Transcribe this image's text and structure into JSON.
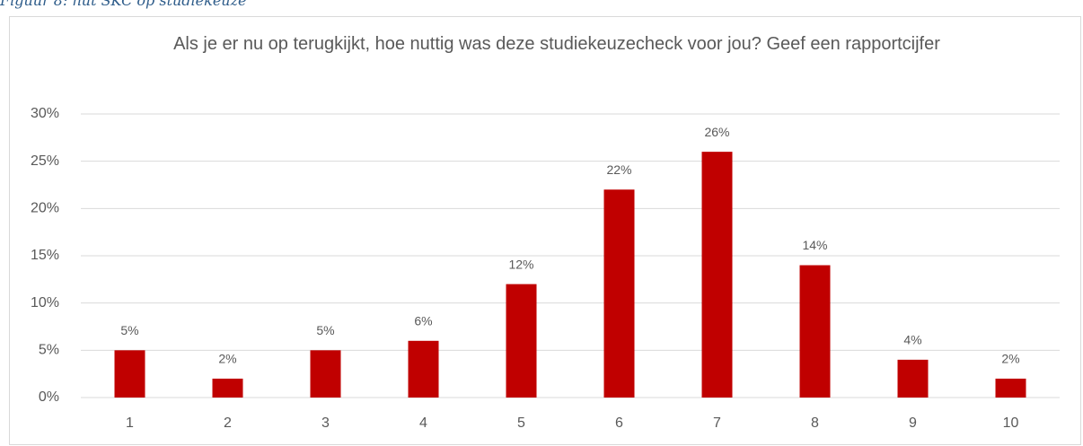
{
  "caption": "Figuur 8: nut SKC op studiekeuze",
  "chart_data": {
    "type": "bar",
    "title": "Als je er nu op terugkijkt, hoe nuttig was deze studiekeuzecheck voor jou? Geef een rapportcijfer",
    "categories": [
      "1",
      "2",
      "3",
      "4",
      "5",
      "6",
      "7",
      "8",
      "9",
      "10"
    ],
    "values": [
      5,
      2,
      5,
      6,
      12,
      22,
      26,
      14,
      4,
      2
    ],
    "value_labels": [
      "5%",
      "2%",
      "5%",
      "6%",
      "12%",
      "22%",
      "26%",
      "14%",
      "4%",
      "2%"
    ],
    "color": "#c00000",
    "ylim": [
      0,
      30
    ],
    "yticks": [
      {
        "value": 0,
        "label": "0%"
      },
      {
        "value": 5,
        "label": "5%"
      },
      {
        "value": 10,
        "label": "10%"
      },
      {
        "value": 15,
        "label": "15%"
      },
      {
        "value": 20,
        "label": "20%"
      },
      {
        "value": 25,
        "label": "25%"
      },
      {
        "value": 30,
        "label": "30%"
      }
    ],
    "grid": true
  }
}
